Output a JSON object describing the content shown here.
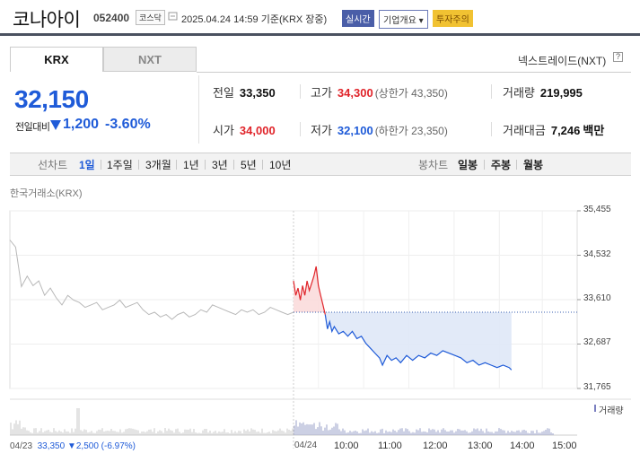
{
  "header": {
    "name": "코나아이",
    "code": "052400",
    "market": "코스닥",
    "datetime": "2025.04.24 14:59",
    "basis": "기준(KRX 장중)",
    "live_badge": "실시간",
    "corp_badge": "기업개요 ▾",
    "warn_badge": "투자주의"
  },
  "tabs": {
    "krx": "KRX",
    "nxt": "NXT",
    "nxt_link": "넥스트레이드(NXT)",
    "help": "?"
  },
  "quote": {
    "price": "32,150",
    "change_label": "전일대비",
    "change": "1,200",
    "change_pct": "-3.60%"
  },
  "stats": {
    "prev_label": "전일",
    "prev": "33,350",
    "high_label": "고가",
    "high": "34,300",
    "upper_limit": "(상한가 43,350)",
    "volume_label": "거래량",
    "volume": "219,995",
    "open_label": "시가",
    "open": "34,000",
    "low_label": "저가",
    "low": "32,100",
    "lower_limit": "(하한가 23,350)",
    "amount_label": "거래대금",
    "amount": "7,246",
    "amount_unit": "백만"
  },
  "period_bar": {
    "line_label": "선차트",
    "periods": [
      "1일",
      "1주일",
      "3개월",
      "1년",
      "3년",
      "5년",
      "10년"
    ],
    "selected": "1일",
    "candle_label": "봉차트",
    "candles": [
      "일봉",
      "주봉",
      "월봉"
    ]
  },
  "chart_data": {
    "type": "line",
    "source": "한국거래소(KRX)",
    "y_ticks": [
      "35,455",
      "34,532",
      "33,610",
      "32,687",
      "31,765"
    ],
    "ylim": [
      31765,
      35455
    ],
    "prev_close": 33350,
    "x_ticks": [
      "10:00",
      "11:00",
      "12:00",
      "13:00",
      "14:00",
      "15:00"
    ],
    "date_labels": [
      "04/23",
      "04/24"
    ],
    "previous_day_series": [
      34850,
      34700,
      33880,
      34100,
      33900,
      34000,
      33700,
      33850,
      33650,
      33500,
      33700,
      33600,
      33550,
      33450,
      33500,
      33550,
      33400,
      33450,
      33500,
      33600,
      33450,
      33500,
      33550,
      33400,
      33300,
      33350,
      33250,
      33300,
      33200,
      33300,
      33350,
      33250,
      33300,
      33400,
      33350,
      33500,
      33450,
      33400,
      33350,
      33300,
      33400,
      33350,
      33400,
      33300,
      33350,
      33450,
      33400,
      33350,
      33300,
      33350
    ],
    "today_series": [
      [
        0,
        34000
      ],
      [
        3,
        33700
      ],
      [
        6,
        33850
      ],
      [
        9,
        33600
      ],
      [
        12,
        33900
      ],
      [
        15,
        33700
      ],
      [
        18,
        34000
      ],
      [
        21,
        33800
      ],
      [
        24,
        33950
      ],
      [
        27,
        34100
      ],
      [
        30,
        34300
      ],
      [
        33,
        33900
      ],
      [
        36,
        33700
      ],
      [
        39,
        33500
      ],
      [
        42,
        33300
      ],
      [
        45,
        33000
      ],
      [
        48,
        33150
      ],
      [
        51,
        32950
      ],
      [
        54,
        33050
      ],
      [
        60,
        32900
      ],
      [
        66,
        32950
      ],
      [
        72,
        32850
      ],
      [
        78,
        32950
      ],
      [
        84,
        32800
      ],
      [
        90,
        32850
      ],
      [
        96,
        32700
      ],
      [
        102,
        32600
      ],
      [
        108,
        32500
      ],
      [
        114,
        32400
      ],
      [
        118,
        32250
      ],
      [
        124,
        32450
      ],
      [
        130,
        32350
      ],
      [
        136,
        32400
      ],
      [
        142,
        32300
      ],
      [
        150,
        32450
      ],
      [
        158,
        32350
      ],
      [
        166,
        32450
      ],
      [
        174,
        32400
      ],
      [
        182,
        32500
      ],
      [
        190,
        32450
      ],
      [
        198,
        32550
      ],
      [
        206,
        32500
      ],
      [
        214,
        32450
      ],
      [
        222,
        32400
      ],
      [
        230,
        32300
      ],
      [
        238,
        32350
      ],
      [
        246,
        32250
      ],
      [
        254,
        32300
      ],
      [
        262,
        32250
      ],
      [
        270,
        32200
      ],
      [
        278,
        32250
      ],
      [
        286,
        32200
      ],
      [
        289,
        32150
      ]
    ],
    "volume_label": "거래량",
    "previous_day_summary": {
      "date": "04/23",
      "close": "33,350",
      "change": "▼2,500",
      "change_pct": "(-6.97%)"
    }
  }
}
